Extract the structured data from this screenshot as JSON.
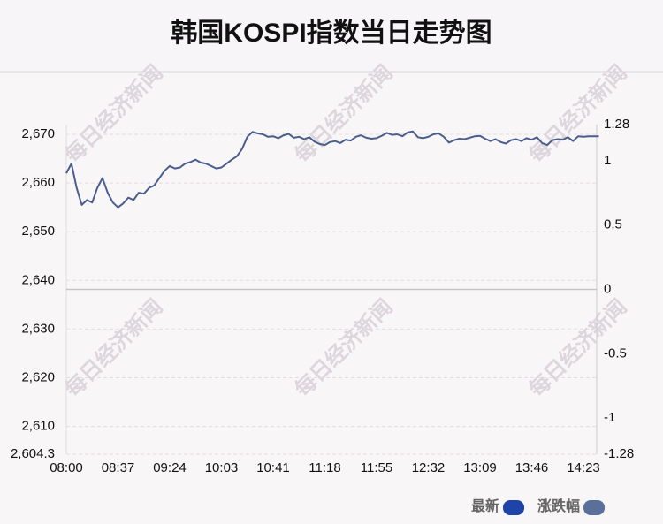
{
  "chart_data": {
    "type": "line",
    "title": "韩国KOSPI指数当日走势图",
    "watermark": "每日经济新闻",
    "x": [
      "08:00",
      null,
      null,
      null,
      null,
      null,
      null,
      null,
      null,
      null,
      "08:37",
      null,
      null,
      null,
      null,
      null,
      null,
      null,
      null,
      null,
      "09:24",
      null,
      null,
      null,
      null,
      null,
      null,
      null,
      null,
      null,
      "10:03",
      null,
      null,
      null,
      null,
      null,
      null,
      null,
      null,
      null,
      "10:41",
      null,
      null,
      null,
      null,
      null,
      null,
      null,
      null,
      null,
      "11:18",
      null,
      null,
      null,
      null,
      null,
      null,
      null,
      null,
      null,
      "11:55",
      null,
      null,
      null,
      null,
      null,
      null,
      null,
      null,
      null,
      "12:32",
      null,
      null,
      null,
      null,
      null,
      null,
      null,
      null,
      null,
      "13:09",
      null,
      null,
      null,
      null,
      null,
      null,
      null,
      null,
      null,
      "13:46",
      null,
      null,
      null,
      null,
      null,
      null,
      null,
      null,
      null,
      "14:23",
      null,
      null,
      null
    ],
    "series": [
      {
        "color": "#4a5e8e",
        "values": [
          2662,
          2664,
          2659,
          2655.5,
          2656.5,
          2656,
          2659,
          2661,
          2658,
          2656,
          2655,
          2655.8,
          2657,
          2656.5,
          2658,
          2657.8,
          2659,
          2659.5,
          2661,
          2662.5,
          2663.5,
          2663,
          2663.2,
          2664,
          2664.3,
          2664.8,
          2664.2,
          2664,
          2663.5,
          2663,
          2663.2,
          2664,
          2664.8,
          2665.5,
          2667,
          2669.5,
          2670.5,
          2670.2,
          2670,
          2669.5,
          2669.6,
          2669.2,
          2669.8,
          2670.1,
          2669.3,
          2669.5,
          2669,
          2669.4,
          2668.5,
          2668,
          2667.8,
          2668.4,
          2668.6,
          2668.2,
          2668.9,
          2668.7,
          2669.5,
          2669.8,
          2669.3,
          2669.1,
          2669.2,
          2669.7,
          2670.3,
          2669.9,
          2670,
          2669.6,
          2670.4,
          2670.6,
          2669.4,
          2669.2,
          2669.5,
          2670,
          2670.2,
          2669.5,
          2668.3,
          2668.8,
          2669.1,
          2669,
          2669.3,
          2669.6,
          2669.7,
          2669.1,
          2668.6,
          2669,
          2668.4,
          2668.1,
          2668.8,
          2669,
          2668.6,
          2669.2,
          2668.9,
          2669.4,
          2668.2,
          2667.8,
          2668.8,
          2669,
          2668.9,
          2669.4,
          2668.6,
          2669.6,
          2669.5,
          2669.6,
          2669.6,
          2669.6
        ]
      }
    ],
    "legend": [
      {
        "name": "最新",
        "color": "#1f44a8"
      },
      {
        "name": "涨跌幅",
        "color": "#5b6f9b"
      }
    ],
    "ylim": [
      2604.3,
      2672
    ],
    "yticks": [
      {
        "value": 2604.3,
        "label": "2,604.3"
      },
      {
        "value": 2610,
        "label": "2,610"
      },
      {
        "value": 2620,
        "label": "2,620"
      },
      {
        "value": 2630,
        "label": "2,630"
      },
      {
        "value": 2640,
        "label": "2,640"
      },
      {
        "value": 2650,
        "label": "2,650"
      },
      {
        "value": 2660,
        "label": "2,660"
      },
      {
        "value": 2670,
        "label": "2,670"
      }
    ],
    "y2lim": [
      -1.28,
      1.28
    ],
    "y2ticks": [
      -1.28,
      -1,
      -0.5,
      0,
      0.5,
      1,
      1.28
    ],
    "grid": true
  }
}
